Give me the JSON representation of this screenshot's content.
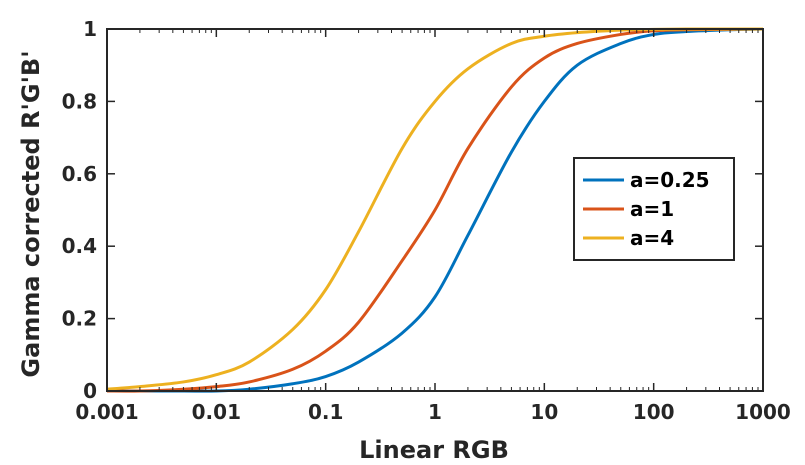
{
  "chart_data": {
    "type": "line",
    "x_scale": "log",
    "xlim": [
      0.001,
      1000
    ],
    "ylim": [
      0,
      1
    ],
    "xlabel": "Linear RGB",
    "ylabel": "Gamma corrected R'G'B'",
    "x_ticks": [
      "0.001",
      "0.01",
      "0.1",
      "1",
      "10",
      "100",
      "1000"
    ],
    "y_ticks": [
      "0",
      "0.2",
      "0.4",
      "0.6",
      "0.8",
      "1"
    ],
    "grid": false,
    "legend_position": "right",
    "x": [
      0.001,
      0.002,
      0.005,
      0.01,
      0.02,
      0.05,
      0.1,
      0.2,
      0.5,
      1,
      2,
      5,
      10,
      20,
      50,
      100,
      200,
      500,
      1000
    ],
    "series": [
      {
        "name": "a=0.25",
        "color": "#0072BD",
        "values": [
          0.0,
          0.0,
          0.0,
          0.0,
          0.005,
          0.02,
          0.04,
          0.08,
          0.16,
          0.26,
          0.43,
          0.66,
          0.8,
          0.9,
          0.96,
          0.985,
          0.993,
          0.998,
          1.0
        ]
      },
      {
        "name": "a=1",
        "color": "#D95319",
        "values": [
          0.0,
          0.0,
          0.005,
          0.012,
          0.025,
          0.06,
          0.11,
          0.19,
          0.36,
          0.5,
          0.67,
          0.84,
          0.92,
          0.96,
          0.985,
          0.995,
          0.998,
          0.999,
          1.0
        ]
      },
      {
        "name": "a=4",
        "color": "#EDB120",
        "values": [
          0.005,
          0.012,
          0.025,
          0.045,
          0.08,
          0.17,
          0.28,
          0.44,
          0.67,
          0.8,
          0.89,
          0.96,
          0.98,
          0.99,
          0.997,
          0.999,
          1.0,
          1.0,
          1.0
        ]
      }
    ]
  }
}
